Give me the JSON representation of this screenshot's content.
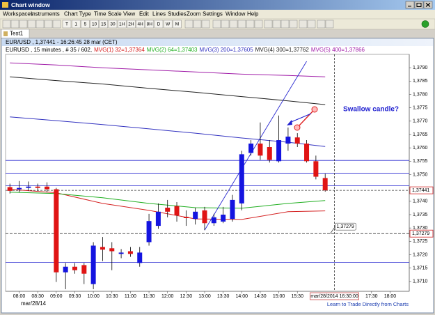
{
  "window": {
    "title": "Chart window",
    "menu": [
      "Workspaces",
      "Instruments",
      "Chart Type",
      "Time Scale",
      "View",
      "Edit",
      "Lines",
      "Studies",
      "Zoom",
      "Settings",
      "Window",
      "Help"
    ],
    "timeframes": [
      "T",
      "1",
      "5",
      "10",
      "15",
      "30",
      "1H",
      "2H",
      "4H",
      "8H",
      "D",
      "W",
      "M"
    ],
    "tab": "Test1",
    "footer": "Learn to Trade Directly from Charts"
  },
  "chart_data": {
    "type": "candlestick",
    "title": "EUR/USD , 1,37441 - 16:26:45 28 mar (CET)",
    "subtitle": "EURUSD , 15 minutes , # 35 / 602,",
    "date_label": "mar/28/14",
    "x": [
      "07:45",
      "08:00",
      "08:15",
      "08:30",
      "08:45",
      "09:00",
      "09:15",
      "09:30",
      "09:45",
      "10:00",
      "10:15",
      "10:30",
      "10:45",
      "11:00",
      "11:15",
      "11:30",
      "11:45",
      "12:00",
      "12:15",
      "12:30",
      "12:45",
      "13:00",
      "13:15",
      "13:30",
      "13:45",
      "14:00",
      "14:15",
      "14:30",
      "14:45",
      "15:00",
      "15:15",
      "15:30",
      "15:45",
      "16:00",
      "16:15"
    ],
    "open": [
      1.37453,
      1.37445,
      1.3745,
      1.37455,
      1.37455,
      1.37445,
      1.37134,
      1.37155,
      1.37161,
      1.3709,
      1.37229,
      1.37224,
      1.37203,
      1.37213,
      1.37169,
      1.37247,
      1.37308,
      1.37376,
      1.37382,
      1.37342,
      1.37334,
      1.37366,
      1.37318,
      1.37324,
      1.37334,
      1.37392,
      1.37581,
      1.37616,
      1.37603,
      1.3755,
      1.37616,
      1.37639,
      1.37616,
      1.3755,
      1.37487
    ],
    "high": [
      1.37466,
      1.37476,
      1.37474,
      1.37466,
      1.37471,
      1.3745,
      1.37169,
      1.37169,
      1.37169,
      1.37247,
      1.37266,
      1.37247,
      1.37221,
      1.37229,
      1.37229,
      1.37353,
      1.37392,
      1.37405,
      1.37397,
      1.37366,
      1.37376,
      1.37379,
      1.37353,
      1.37379,
      1.37424,
      1.37589,
      1.37629,
      1.37695,
      1.37629,
      1.37721,
      1.37676,
      1.37655,
      1.37629,
      1.37571,
      1.37503
    ],
    "low": [
      1.37429,
      1.37434,
      1.37439,
      1.37439,
      1.37434,
      1.37098,
      1.37071,
      1.37129,
      1.3709,
      1.37071,
      1.37176,
      1.37142,
      1.37187,
      1.37192,
      1.37155,
      1.37234,
      1.37297,
      1.3734,
      1.37324,
      1.37308,
      1.37313,
      1.37292,
      1.37308,
      1.37318,
      1.37324,
      1.37366,
      1.37571,
      1.37555,
      1.37545,
      1.37545,
      1.37589,
      1.37603,
      1.37545,
      1.37482,
      1.37436
    ],
    "close": [
      1.37439,
      1.3745,
      1.37455,
      1.3745,
      1.37445,
      1.37134,
      1.37155,
      1.37142,
      1.37129,
      1.37234,
      1.37219,
      1.37213,
      1.37208,
      1.37203,
      1.37208,
      1.37326,
      1.37361,
      1.37361,
      1.37347,
      1.37337,
      1.37361,
      1.37318,
      1.3734,
      1.3735,
      1.37405,
      1.37576,
      1.37616,
      1.37571,
      1.37555,
      1.37629,
      1.37642,
      1.37616,
      1.3755,
      1.37492,
      1.37441
    ],
    "up_color": "#1414e0",
    "down_color": "#e01414",
    "series": [
      {
        "name": "MVG(1) 32=1,37364",
        "color": "#d42020",
        "x": [
          "07:45",
          "09:00",
          "10:15",
          "11:30",
          "12:45",
          "14:00",
          "15:15",
          "16:15"
        ],
        "values": [
          1.37445,
          1.37432,
          1.37392,
          1.37366,
          1.37334,
          1.37332,
          1.37361,
          1.37364
        ]
      },
      {
        "name": "MVG(2) 64=1,37403",
        "color": "#1fae1f",
        "x": [
          "07:45",
          "09:00",
          "10:15",
          "11:30",
          "12:45",
          "14:00",
          "15:15",
          "16:15"
        ],
        "values": [
          1.37434,
          1.37429,
          1.37413,
          1.37392,
          1.37376,
          1.37374,
          1.37392,
          1.37403
        ]
      },
      {
        "name": "MVG(3) 200=1,37605",
        "color": "#3232c0",
        "x": [
          "07:45",
          "09:00",
          "10:15",
          "11:30",
          "12:45",
          "14:00",
          "15:15",
          "16:15"
        ],
        "values": [
          1.37716,
          1.37702,
          1.37687,
          1.37671,
          1.37655,
          1.37637,
          1.37621,
          1.37605
        ]
      },
      {
        "name": "MVG(4) 300=1,37762",
        "color": "#222222",
        "x": [
          "07:45",
          "09:00",
          "10:15",
          "11:30",
          "12:45",
          "14:00",
          "15:15",
          "16:15"
        ],
        "values": [
          1.37866,
          1.37852,
          1.37839,
          1.37823,
          1.37808,
          1.37792,
          1.37776,
          1.37762
        ]
      },
      {
        "name": "MVG(5) 400=1,37866",
        "color": "#a01ca8",
        "x": [
          "07:45",
          "09:00",
          "10:15",
          "11:30",
          "12:45",
          "14:00",
          "15:15",
          "16:15"
        ],
        "values": [
          1.37918,
          1.3791,
          1.379,
          1.37892,
          1.37884,
          1.37876,
          1.37871,
          1.37866
        ]
      }
    ],
    "horizontal_lines": [
      1.37553,
      1.37505,
      1.37458,
      1.37171
    ],
    "line_color": "#2828d0",
    "trendline": {
      "x": [
        "13:00",
        "15:45"
      ],
      "values": [
        1.37292,
        1.37924
      ]
    },
    "last_price": {
      "value": 1.37441,
      "label": "1,37441"
    },
    "level": {
      "value": 1.37279,
      "label": "1,37279"
    },
    "cursor": {
      "x": "16:30",
      "label": "mar/28/2014 16:30:00"
    },
    "annotation": "Swallow candle?",
    "xlim": [
      "07:38",
      "18:31"
    ],
    "xticks": [
      "08:00",
      "08:30",
      "09:00",
      "09:30",
      "10:00",
      "10:30",
      "11:00",
      "11:30",
      "12:00",
      "12:30",
      "13:00",
      "13:30",
      "14:00",
      "14:30",
      "15:00",
      "15:30",
      "17:30",
      "18:00"
    ],
    "ylim": [
      1.37063,
      1.3795
    ],
    "yticks": [
      {
        "value": 1.379,
        "label": "1,3790"
      },
      {
        "value": 1.3785,
        "label": "1,3785"
      },
      {
        "value": 1.378,
        "label": "1,3780"
      },
      {
        "value": 1.3775,
        "label": "1,3775"
      },
      {
        "value": 1.377,
        "label": "1,3770"
      },
      {
        "value": 1.3765,
        "label": "1,3765"
      },
      {
        "value": 1.376,
        "label": "1,3760"
      },
      {
        "value": 1.3755,
        "label": "1,3755"
      },
      {
        "value": 1.375,
        "label": "1,3750"
      },
      {
        "value": 1.374,
        "label": "1,3740"
      },
      {
        "value": 1.3735,
        "label": "1,3735"
      },
      {
        "value": 1.373,
        "label": "1,3730"
      },
      {
        "value": 1.3725,
        "label": "1,3725"
      },
      {
        "value": 1.372,
        "label": "1,3720"
      },
      {
        "value": 1.3715,
        "label": "1,3715"
      },
      {
        "value": 1.371,
        "label": "1,3710"
      }
    ],
    "grid": false
  }
}
